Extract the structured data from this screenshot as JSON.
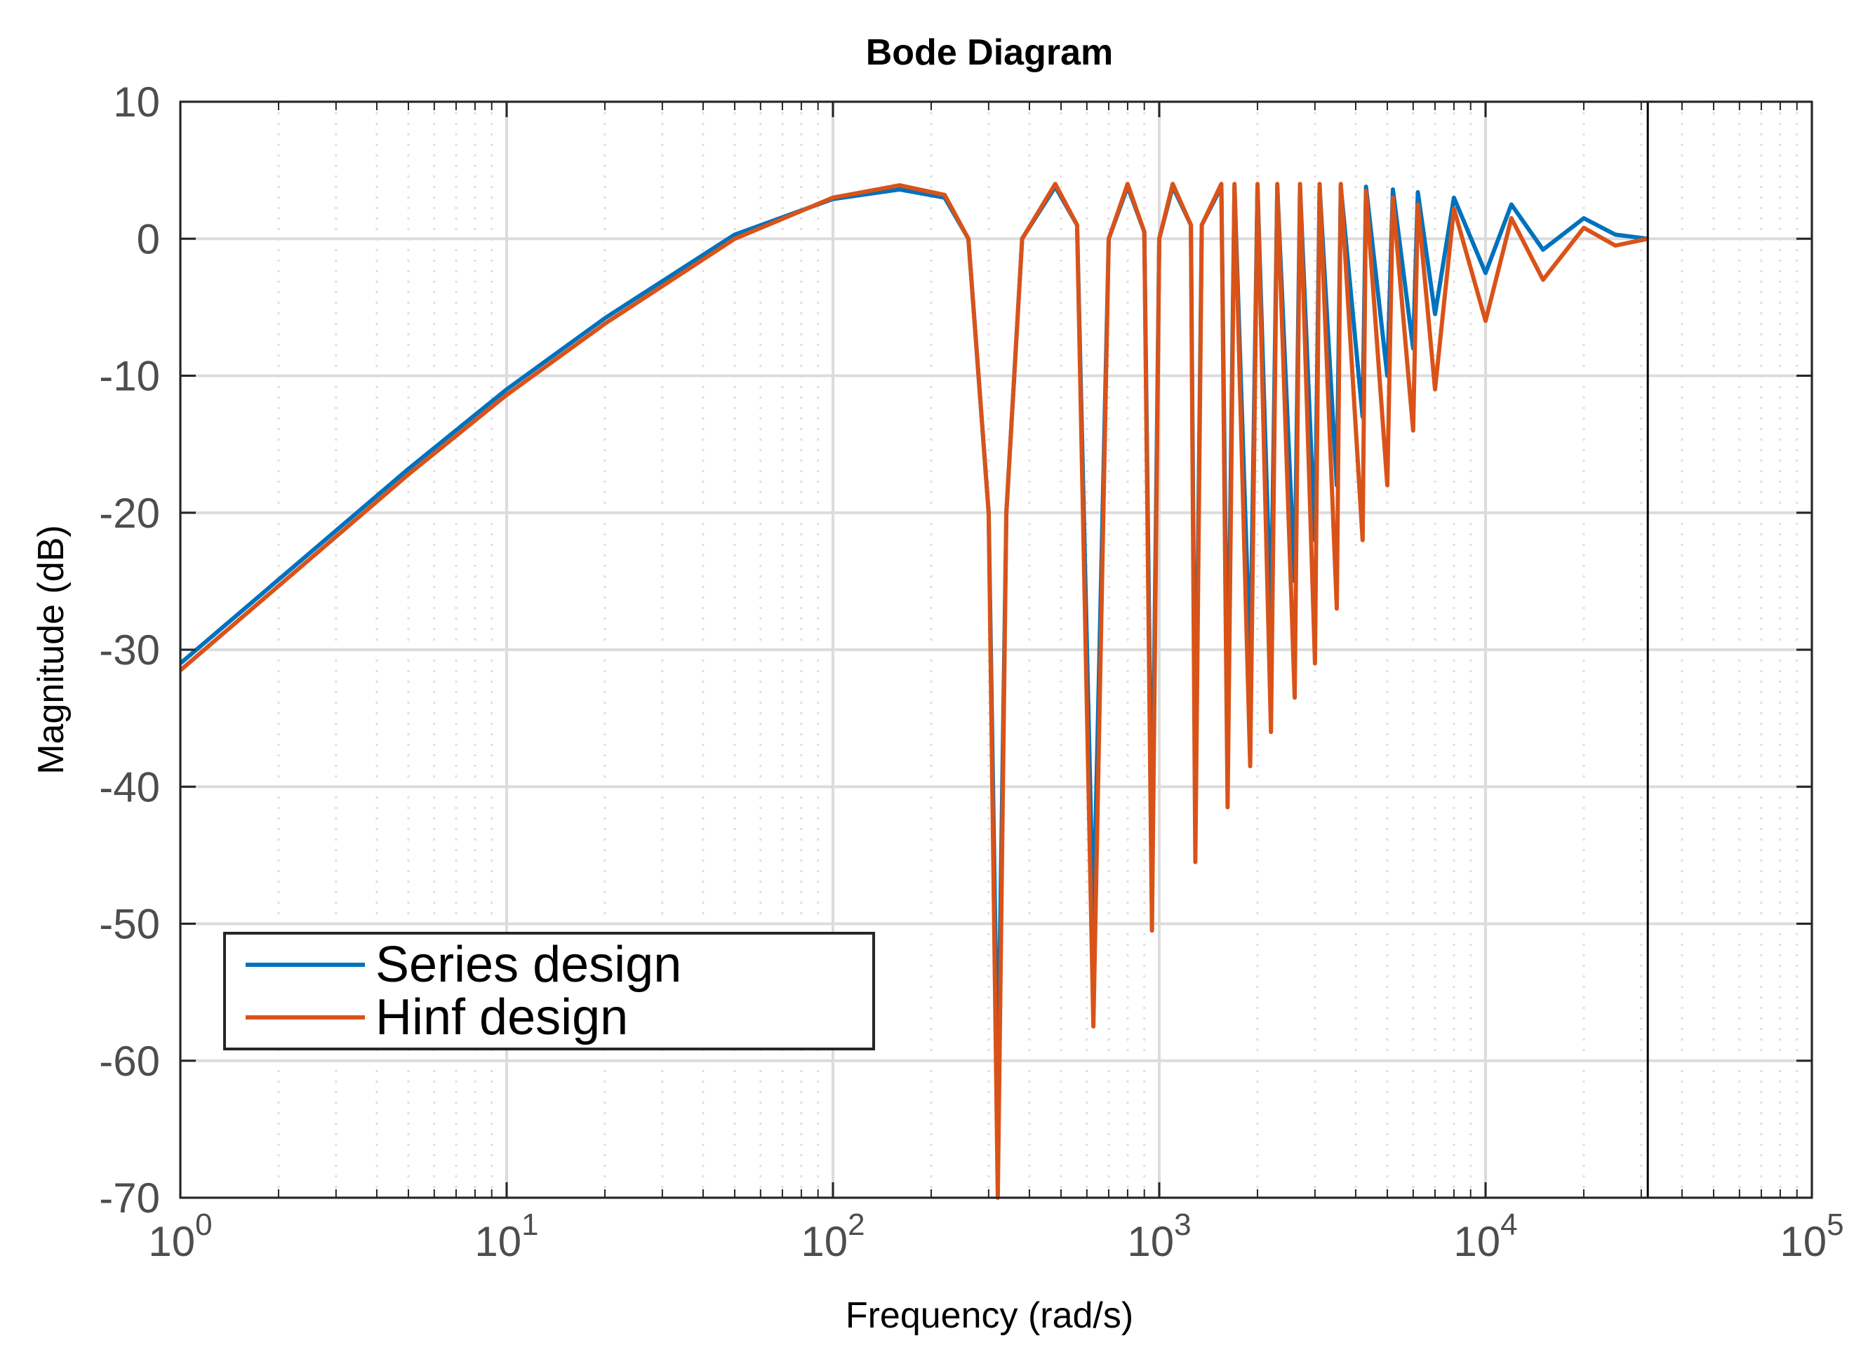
{
  "chart_data": {
    "type": "line",
    "title": "Bode Diagram",
    "xlabel": "Frequency  (rad/s)",
    "ylabel": "Magnitude (dB)",
    "xscale": "log",
    "xlim": [
      1,
      100000
    ],
    "ylim": [
      -70,
      10
    ],
    "xticks": [
      {
        "base": "10",
        "exp": "0"
      },
      {
        "base": "10",
        "exp": "1"
      },
      {
        "base": "10",
        "exp": "2"
      },
      {
        "base": "10",
        "exp": "3"
      },
      {
        "base": "10",
        "exp": "4"
      },
      {
        "base": "10",
        "exp": "5"
      }
    ],
    "yticks": [
      "10",
      "0",
      "-10",
      "-20",
      "-30",
      "-40",
      "-50",
      "-60",
      "-70"
    ],
    "grid": true,
    "legend_position": "bottom-left",
    "vertical_line_x": 31416,
    "series": [
      {
        "name": "Series design",
        "color": "#0072bd",
        "points": [
          [
            1,
            -31.0
          ],
          [
            5,
            -16.8
          ],
          [
            10,
            -11.0
          ],
          [
            20,
            -5.8
          ],
          [
            50,
            0.3
          ],
          [
            100,
            2.9
          ],
          [
            160,
            3.6
          ],
          [
            220,
            3.0
          ],
          [
            260,
            0.0
          ],
          [
            300,
            -20.0
          ],
          [
            320,
            -62.0
          ],
          [
            340,
            -20.0
          ],
          [
            380,
            0.0
          ],
          [
            480,
            3.8
          ],
          [
            560,
            1.0
          ],
          [
            628,
            -50.0
          ],
          [
            700,
            0.0
          ],
          [
            800,
            3.8
          ],
          [
            900,
            0.5
          ],
          [
            950,
            -45.0
          ],
          [
            1000,
            0.0
          ],
          [
            1100,
            3.8
          ],
          [
            1250,
            1.0
          ],
          [
            1290,
            -40.0
          ],
          [
            1350,
            1.0
          ],
          [
            1550,
            3.8
          ],
          [
            1620,
            -35.0
          ],
          [
            1700,
            3.8
          ],
          [
            1900,
            -31.0
          ],
          [
            2000,
            3.8
          ],
          [
            2200,
            -28.0
          ],
          [
            2300,
            3.8
          ],
          [
            2600,
            -25.0
          ],
          [
            2700,
            3.8
          ],
          [
            3000,
            -22.0
          ],
          [
            3100,
            3.8
          ],
          [
            3500,
            -18.0
          ],
          [
            3600,
            3.8
          ],
          [
            4200,
            -13.0
          ],
          [
            4300,
            3.8
          ],
          [
            5000,
            -10.0
          ],
          [
            5200,
            3.6
          ],
          [
            6000,
            -8.0
          ],
          [
            6200,
            3.4
          ],
          [
            7000,
            -5.5
          ],
          [
            8000,
            3.0
          ],
          [
            10000,
            -2.5
          ],
          [
            12000,
            2.5
          ],
          [
            15000,
            -0.8
          ],
          [
            20000,
            1.5
          ],
          [
            25000,
            0.3
          ],
          [
            31416,
            0.0
          ]
        ]
      },
      {
        "name": "Hinf design",
        "color": "#d95319",
        "points": [
          [
            1,
            -31.5
          ],
          [
            5,
            -17.2
          ],
          [
            10,
            -11.4
          ],
          [
            20,
            -6.2
          ],
          [
            50,
            0.0
          ],
          [
            100,
            3.0
          ],
          [
            160,
            3.9
          ],
          [
            220,
            3.2
          ],
          [
            260,
            0.0
          ],
          [
            300,
            -20.0
          ],
          [
            320,
            -70.0
          ],
          [
            340,
            -20.0
          ],
          [
            380,
            0.0
          ],
          [
            480,
            4.0
          ],
          [
            560,
            1.0
          ],
          [
            628,
            -57.5
          ],
          [
            700,
            0.0
          ],
          [
            800,
            4.0
          ],
          [
            900,
            0.5
          ],
          [
            950,
            -50.5
          ],
          [
            1000,
            0.0
          ],
          [
            1100,
            4.0
          ],
          [
            1250,
            1.0
          ],
          [
            1290,
            -45.5
          ],
          [
            1350,
            1.0
          ],
          [
            1550,
            4.0
          ],
          [
            1620,
            -41.5
          ],
          [
            1700,
            4.0
          ],
          [
            1900,
            -38.5
          ],
          [
            2000,
            4.0
          ],
          [
            2200,
            -36.0
          ],
          [
            2300,
            4.0
          ],
          [
            2600,
            -33.5
          ],
          [
            2700,
            4.0
          ],
          [
            3000,
            -31.0
          ],
          [
            3100,
            4.0
          ],
          [
            3500,
            -27.0
          ],
          [
            3600,
            4.0
          ],
          [
            4200,
            -22.0
          ],
          [
            4300,
            3.5
          ],
          [
            5000,
            -18.0
          ],
          [
            5200,
            3.0
          ],
          [
            6000,
            -14.0
          ],
          [
            6200,
            2.5
          ],
          [
            7000,
            -11.0
          ],
          [
            8000,
            2.2
          ],
          [
            10000,
            -6.0
          ],
          [
            12000,
            1.5
          ],
          [
            15000,
            -3.0
          ],
          [
            20000,
            0.8
          ],
          [
            25000,
            -0.5
          ],
          [
            31416,
            0.0
          ]
        ]
      }
    ]
  }
}
